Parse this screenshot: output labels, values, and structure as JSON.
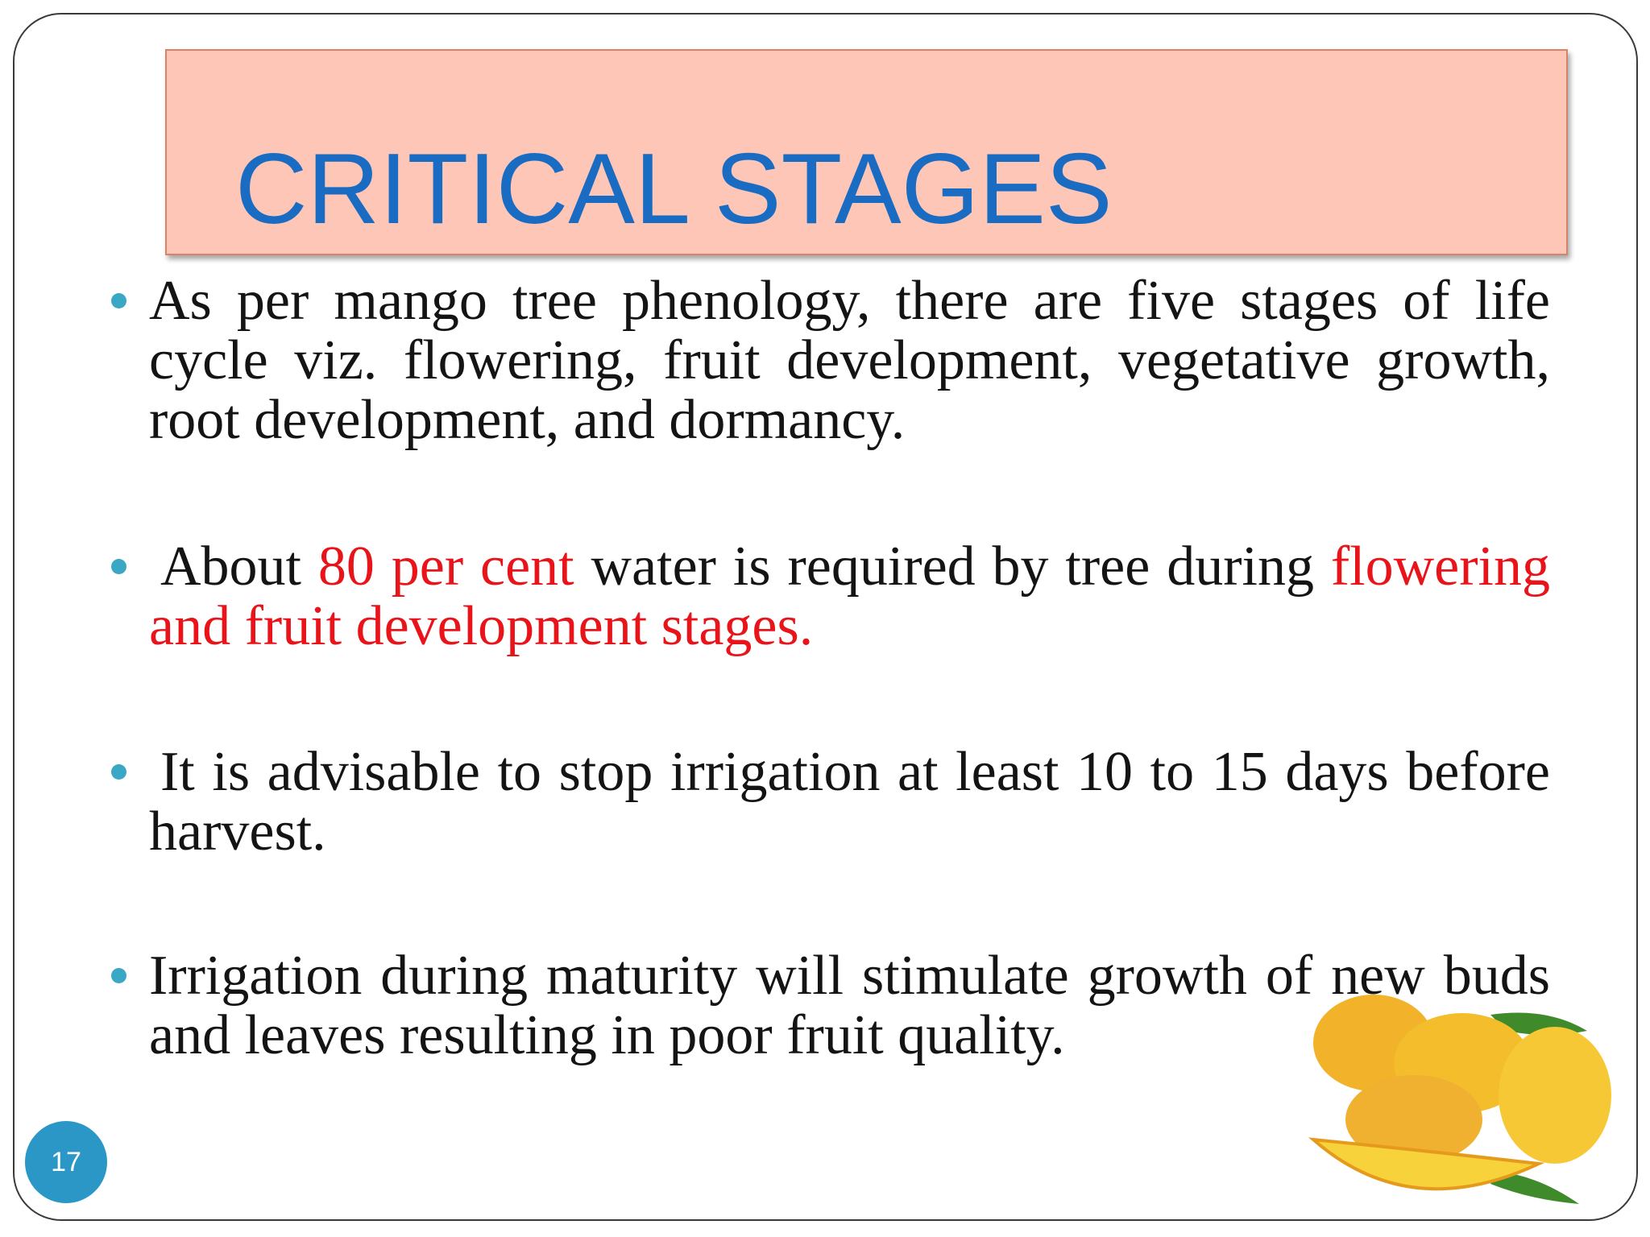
{
  "slide": {
    "title": "CRITICAL STAGES",
    "number": "17",
    "bullets": [
      [
        {
          "text": "As per mango tree phenology, there are five stages of life cycle viz. flowering, fruit development, vegetative growth, root development, and dormancy.",
          "color": "#141414"
        }
      ],
      [
        {
          "text": "About ",
          "color": "#141414"
        },
        {
          "text": "80 per cent",
          "color": "#e8141a"
        },
        {
          "text": " water is required by tree during ",
          "color": "#141414"
        },
        {
          "text": "flowering and fruit development stages.",
          "color": "#e8141a"
        }
      ],
      [
        {
          "text": "It is advisable to stop irrigation at least 10 to 15 days before harvest.",
          "color": "#141414"
        }
      ],
      [
        {
          "text": "Irrigation during maturity will stimulate growth of new buds and leaves resulting in poor fruit quality.",
          "color": "#141414"
        }
      ]
    ]
  }
}
